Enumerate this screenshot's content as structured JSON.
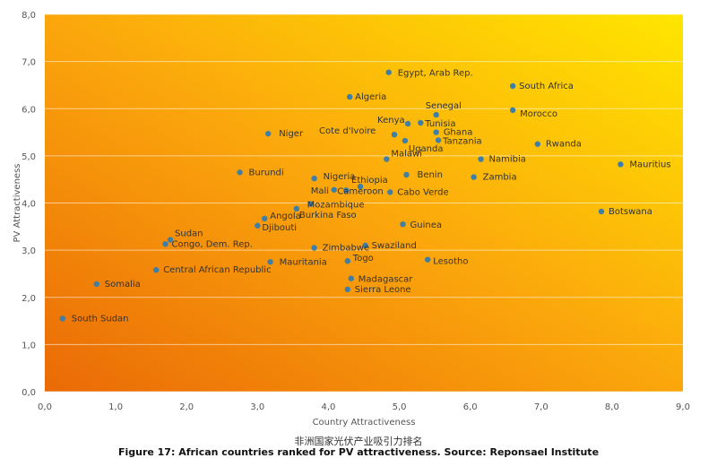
{
  "caption_cn": "非洲国家光伏产业吸引力排名",
  "caption_en": "Figure 17: African countries ranked for PV attractiveness. Source: Reponsael Institute",
  "colors": {
    "marker": "#3f7fa6",
    "bg_light": "#ffe600",
    "bg_dark": "#ea6a06",
    "tick_text": "#555555",
    "grid": "#ffffff"
  },
  "chart_data": {
    "type": "scatter",
    "title": "",
    "xlabel": "Country Attractiveness",
    "ylabel": "PV Attractiveness",
    "xlim": [
      0,
      9
    ],
    "ylim": [
      0,
      8
    ],
    "xticks": [
      "0,0",
      "1,0",
      "2,0",
      "3,0",
      "4,0",
      "5,0",
      "6,0",
      "7,0",
      "8,0",
      "9,0"
    ],
    "yticks": [
      "0,0",
      "1,0",
      "2,0",
      "3,0",
      "4,0",
      "5,0",
      "6,0",
      "7,0",
      "8,0"
    ],
    "grid": true,
    "points": [
      {
        "label": "South Sudan",
        "x": 0.25,
        "y": 1.55
      },
      {
        "label": "Somalia",
        "x": 0.73,
        "y": 2.28
      },
      {
        "label": "Central African Republic",
        "x": 1.57,
        "y": 2.58
      },
      {
        "label": "Congo, Dem. Rep.",
        "x": 1.7,
        "y": 3.13
      },
      {
        "label": "Sudan",
        "x": 1.77,
        "y": 3.22
      },
      {
        "label": "Burundi",
        "x": 2.75,
        "y": 4.65
      },
      {
        "label": "Djibouti",
        "x": 3.0,
        "y": 3.52
      },
      {
        "label": "Angola",
        "x": 3.1,
        "y": 3.67
      },
      {
        "label": "Niger",
        "x": 3.15,
        "y": 5.47
      },
      {
        "label": "Mauritania",
        "x": 3.18,
        "y": 2.75
      },
      {
        "label": "Burkina Faso",
        "x": 3.55,
        "y": 3.88
      },
      {
        "label": "Mozambique",
        "x": 3.75,
        "y": 3.98
      },
      {
        "label": "Zimbabwe",
        "x": 3.8,
        "y": 3.05
      },
      {
        "label": "Nigeria",
        "x": 3.8,
        "y": 4.52
      },
      {
        "label": "Mali",
        "x": 4.08,
        "y": 4.28
      },
      {
        "label": "Cameroon",
        "x": 4.25,
        "y": 4.27
      },
      {
        "label": "Algeria",
        "x": 4.3,
        "y": 6.25
      },
      {
        "label": "Togo",
        "x": 4.27,
        "y": 2.77
      },
      {
        "label": "Sierra Leone",
        "x": 4.27,
        "y": 2.17
      },
      {
        "label": "Madagascar",
        "x": 4.32,
        "y": 2.4
      },
      {
        "label": "Ethiopia",
        "x": 4.45,
        "y": 4.35
      },
      {
        "label": "Swaziland",
        "x": 4.52,
        "y": 3.1
      },
      {
        "label": "Malawi",
        "x": 4.82,
        "y": 4.93
      },
      {
        "label": "Cabo Verde",
        "x": 4.87,
        "y": 4.23
      },
      {
        "label": "Egypt, Arab Rep.",
        "x": 4.85,
        "y": 6.77
      },
      {
        "label": "Cote d'Ivoire",
        "x": 4.93,
        "y": 5.45
      },
      {
        "label": "Guinea",
        "x": 5.05,
        "y": 3.55
      },
      {
        "label": "Uganda",
        "x": 5.08,
        "y": 5.32
      },
      {
        "label": "Kenya",
        "x": 5.12,
        "y": 5.68
      },
      {
        "label": "Benin",
        "x": 5.1,
        "y": 4.6
      },
      {
        "label": "Tunisia",
        "x": 5.3,
        "y": 5.7
      },
      {
        "label": "Lesotho",
        "x": 5.4,
        "y": 2.8
      },
      {
        "label": "Ghana",
        "x": 5.52,
        "y": 5.5
      },
      {
        "label": "Tanzania",
        "x": 5.55,
        "y": 5.33
      },
      {
        "label": "Senegal",
        "x": 5.52,
        "y": 5.87
      },
      {
        "label": "Zambia",
        "x": 6.05,
        "y": 4.55
      },
      {
        "label": "Namibia",
        "x": 6.15,
        "y": 4.93
      },
      {
        "label": "Morocco",
        "x": 6.6,
        "y": 5.97
      },
      {
        "label": "South Africa",
        "x": 6.6,
        "y": 6.48
      },
      {
        "label": "Rwanda",
        "x": 6.95,
        "y": 5.25
      },
      {
        "label": "Botswana",
        "x": 7.85,
        "y": 3.82
      },
      {
        "label": "Mauritius",
        "x": 8.12,
        "y": 4.82
      }
    ]
  }
}
